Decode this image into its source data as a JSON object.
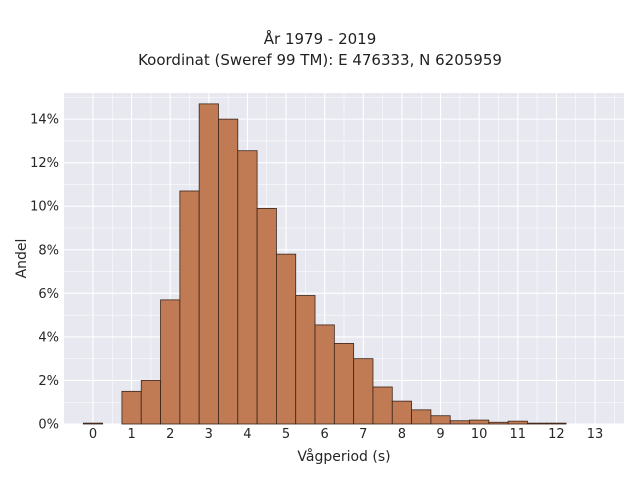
{
  "chart_data": {
    "type": "bar",
    "title_line1": "År 1979 - 2019",
    "title_line2": "Koordinat (Sweref 99 TM): E 476333, N 6205959",
    "xlabel": "Vågperiod (s)",
    "ylabel": "Andel",
    "bin_width": 0.5,
    "x": [
      0,
      0.5,
      1,
      1.5,
      2,
      2.5,
      3,
      3.5,
      4,
      4.5,
      5,
      5.5,
      6,
      6.5,
      7,
      7.5,
      8,
      8.5,
      9,
      9.5,
      10,
      10.5,
      11,
      11.5,
      12,
      12.5,
      13
    ],
    "values": [
      0.04,
      0,
      1.5,
      2.0,
      5.7,
      10.7,
      14.7,
      14.0,
      12.55,
      9.9,
      7.8,
      5.9,
      4.55,
      3.7,
      3.0,
      1.7,
      1.05,
      0.65,
      0.38,
      0.15,
      0.18,
      0.08,
      0.13,
      0.04,
      0.04,
      0,
      0
    ],
    "xlim": [
      -0.75,
      13.75
    ],
    "ylim": [
      0,
      15.2
    ],
    "xticks": [
      "0",
      "1",
      "2",
      "3",
      "4",
      "5",
      "6",
      "7",
      "8",
      "9",
      "10",
      "11",
      "12",
      "13"
    ],
    "yticks": [
      "0%",
      "2%",
      "4%",
      "6%",
      "8%",
      "10%",
      "12%",
      "14%"
    ],
    "grid": true,
    "bar_color": "#c07b55",
    "edge_color": "#3a2418",
    "plot_background": "#e8e8f0",
    "grid_color": "#ffffff"
  }
}
